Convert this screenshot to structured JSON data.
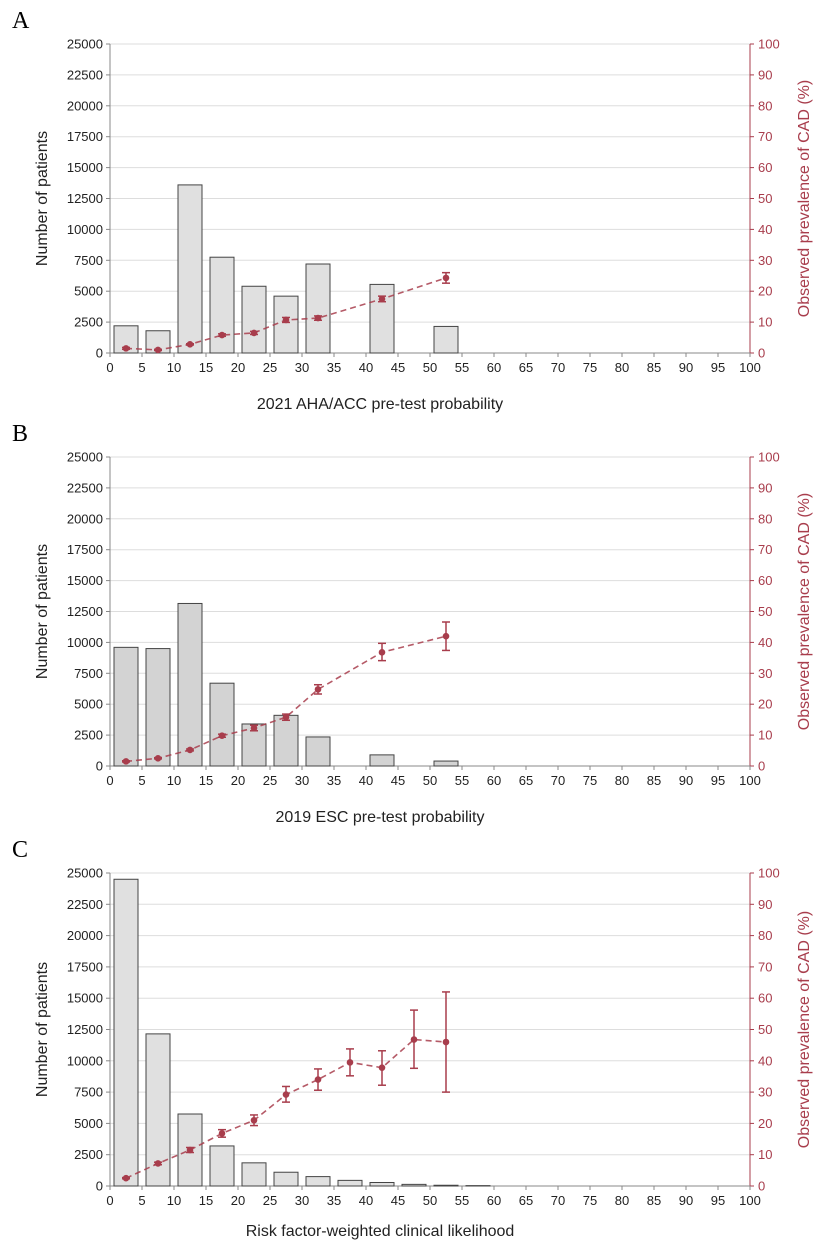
{
  "colors": {
    "prevalence": "#a83d4c",
    "bar_stroke": "#444444",
    "grid": "#dddddd",
    "axis": "#888888"
  },
  "chart_data": [
    {
      "panel": "A",
      "type": "bar",
      "xlabel": "2021 AHA/ACC pre-test probability",
      "ylabel": "Number of patients",
      "y2label": "Observed prevalence of CAD (%)",
      "bar_fill": "#e0e0e0",
      "xlim": [
        0,
        100
      ],
      "ylim": [
        0,
        25000
      ],
      "y2lim": [
        0,
        100
      ],
      "xticks": [
        0,
        5,
        10,
        15,
        20,
        25,
        30,
        35,
        40,
        45,
        50,
        55,
        60,
        65,
        70,
        75,
        80,
        85,
        90,
        95,
        100
      ],
      "yticks": [
        0,
        2500,
        5000,
        7500,
        10000,
        12500,
        15000,
        17500,
        20000,
        22500,
        25000
      ],
      "y2ticks": [
        0,
        10,
        20,
        30,
        40,
        50,
        60,
        70,
        80,
        90,
        100
      ],
      "grid": true,
      "bars": [
        {
          "x0": 0,
          "x1": 5,
          "value": 2200
        },
        {
          "x0": 5,
          "x1": 10,
          "value": 1800
        },
        {
          "x0": 10,
          "x1": 15,
          "value": 13600
        },
        {
          "x0": 15,
          "x1": 20,
          "value": 7750
        },
        {
          "x0": 20,
          "x1": 25,
          "value": 5400
        },
        {
          "x0": 25,
          "x1": 30,
          "value": 4600
        },
        {
          "x0": 30,
          "x1": 35,
          "value": 7200
        },
        {
          "x0": 40,
          "x1": 45,
          "value": 5550
        },
        {
          "x0": 50,
          "x1": 55,
          "value": 2150
        }
      ],
      "prevalence": [
        {
          "x": 2.5,
          "y": 1.5,
          "lo": 1.2,
          "hi": 1.8
        },
        {
          "x": 7.5,
          "y": 1.0,
          "lo": 0.8,
          "hi": 1.2
        },
        {
          "x": 12.5,
          "y": 2.8,
          "lo": 2.6,
          "hi": 3.0
        },
        {
          "x": 17.5,
          "y": 5.8,
          "lo": 5.4,
          "hi": 6.2
        },
        {
          "x": 22.5,
          "y": 6.5,
          "lo": 6.0,
          "hi": 7.0
        },
        {
          "x": 27.5,
          "y": 10.7,
          "lo": 9.9,
          "hi": 11.5
        },
        {
          "x": 32.5,
          "y": 11.3,
          "lo": 10.6,
          "hi": 12.0
        },
        {
          "x": 42.5,
          "y": 17.5,
          "lo": 16.6,
          "hi": 18.4
        },
        {
          "x": 52.5,
          "y": 24.3,
          "lo": 22.6,
          "hi": 26.0
        }
      ]
    },
    {
      "panel": "B",
      "type": "bar",
      "xlabel": "2019 ESC pre-test probability",
      "ylabel": "Number of patients",
      "y2label": "Observed prevalence of CAD (%)",
      "bar_fill": "#d3d3d3",
      "xlim": [
        0,
        100
      ],
      "ylim": [
        0,
        25000
      ],
      "y2lim": [
        0,
        100
      ],
      "xticks": [
        0,
        5,
        10,
        15,
        20,
        25,
        30,
        35,
        40,
        45,
        50,
        55,
        60,
        65,
        70,
        75,
        80,
        85,
        90,
        95,
        100
      ],
      "yticks": [
        0,
        2500,
        5000,
        7500,
        10000,
        12500,
        15000,
        17500,
        20000,
        22500,
        25000
      ],
      "y2ticks": [
        0,
        10,
        20,
        30,
        40,
        50,
        60,
        70,
        80,
        90,
        100
      ],
      "grid": true,
      "bars": [
        {
          "x0": 0,
          "x1": 5,
          "value": 9600
        },
        {
          "x0": 5,
          "x1": 10,
          "value": 9500
        },
        {
          "x0": 10,
          "x1": 15,
          "value": 13150
        },
        {
          "x0": 15,
          "x1": 20,
          "value": 6700
        },
        {
          "x0": 20,
          "x1": 25,
          "value": 3400
        },
        {
          "x0": 25,
          "x1": 30,
          "value": 4100
        },
        {
          "x0": 30,
          "x1": 35,
          "value": 2350
        },
        {
          "x0": 40,
          "x1": 45,
          "value": 900
        },
        {
          "x0": 50,
          "x1": 55,
          "value": 400
        }
      ],
      "prevalence": [
        {
          "x": 2.5,
          "y": 1.5,
          "lo": 1.3,
          "hi": 1.7
        },
        {
          "x": 7.5,
          "y": 2.5,
          "lo": 2.3,
          "hi": 2.7
        },
        {
          "x": 12.5,
          "y": 5.2,
          "lo": 4.9,
          "hi": 5.5
        },
        {
          "x": 17.5,
          "y": 9.8,
          "lo": 9.3,
          "hi": 10.3
        },
        {
          "x": 22.5,
          "y": 12.3,
          "lo": 11.4,
          "hi": 13.2
        },
        {
          "x": 27.5,
          "y": 15.8,
          "lo": 14.8,
          "hi": 16.8
        },
        {
          "x": 32.5,
          "y": 24.8,
          "lo": 23.3,
          "hi": 26.3
        },
        {
          "x": 42.5,
          "y": 36.8,
          "lo": 34.1,
          "hi": 39.7
        },
        {
          "x": 52.5,
          "y": 42.0,
          "lo": 37.4,
          "hi": 46.6
        }
      ]
    },
    {
      "panel": "C",
      "type": "bar",
      "xlabel": "Risk factor-weighted clinical likelihood",
      "ylabel": "Number of patients",
      "y2label": "Observed prevalence of CAD (%)",
      "bar_fill": "#e0e0e0",
      "xlim": [
        0,
        100
      ],
      "ylim": [
        0,
        25000
      ],
      "y2lim": [
        0,
        100
      ],
      "xticks": [
        0,
        5,
        10,
        15,
        20,
        25,
        30,
        35,
        40,
        45,
        50,
        55,
        60,
        65,
        70,
        75,
        80,
        85,
        90,
        95,
        100
      ],
      "yticks": [
        0,
        2500,
        5000,
        7500,
        10000,
        12500,
        15000,
        17500,
        20000,
        22500,
        25000
      ],
      "y2ticks": [
        0,
        10,
        20,
        30,
        40,
        50,
        60,
        70,
        80,
        90,
        100
      ],
      "grid": true,
      "bars": [
        {
          "x0": 0,
          "x1": 5,
          "value": 24500
        },
        {
          "x0": 5,
          "x1": 10,
          "value": 12150
        },
        {
          "x0": 10,
          "x1": 15,
          "value": 5750
        },
        {
          "x0": 15,
          "x1": 20,
          "value": 3200
        },
        {
          "x0": 20,
          "x1": 25,
          "value": 1850
        },
        {
          "x0": 25,
          "x1": 30,
          "value": 1100
        },
        {
          "x0": 30,
          "x1": 35,
          "value": 750
        },
        {
          "x0": 35,
          "x1": 40,
          "value": 450
        },
        {
          "x0": 40,
          "x1": 45,
          "value": 280
        },
        {
          "x0": 45,
          "x1": 50,
          "value": 130
        },
        {
          "x0": 50,
          "x1": 55,
          "value": 60
        },
        {
          "x0": 55,
          "x1": 60,
          "value": 30
        }
      ],
      "prevalence": [
        {
          "x": 2.5,
          "y": 2.5,
          "lo": 2.3,
          "hi": 2.7
        },
        {
          "x": 7.5,
          "y": 7.2,
          "lo": 6.8,
          "hi": 7.6
        },
        {
          "x": 12.5,
          "y": 11.5,
          "lo": 10.7,
          "hi": 12.3
        },
        {
          "x": 17.5,
          "y": 16.8,
          "lo": 15.6,
          "hi": 18.0
        },
        {
          "x": 22.5,
          "y": 21.0,
          "lo": 19.3,
          "hi": 22.7
        },
        {
          "x": 27.5,
          "y": 29.2,
          "lo": 26.8,
          "hi": 31.8
        },
        {
          "x": 32.5,
          "y": 34.0,
          "lo": 30.6,
          "hi": 37.4
        },
        {
          "x": 37.5,
          "y": 39.5,
          "lo": 35.2,
          "hi": 43.8
        },
        {
          "x": 42.5,
          "y": 37.8,
          "lo": 32.2,
          "hi": 43.2
        },
        {
          "x": 47.5,
          "y": 46.8,
          "lo": 37.6,
          "hi": 56.2
        },
        {
          "x": 52.5,
          "y": 46.0,
          "lo": 30.0,
          "hi": 62.0
        }
      ]
    }
  ]
}
